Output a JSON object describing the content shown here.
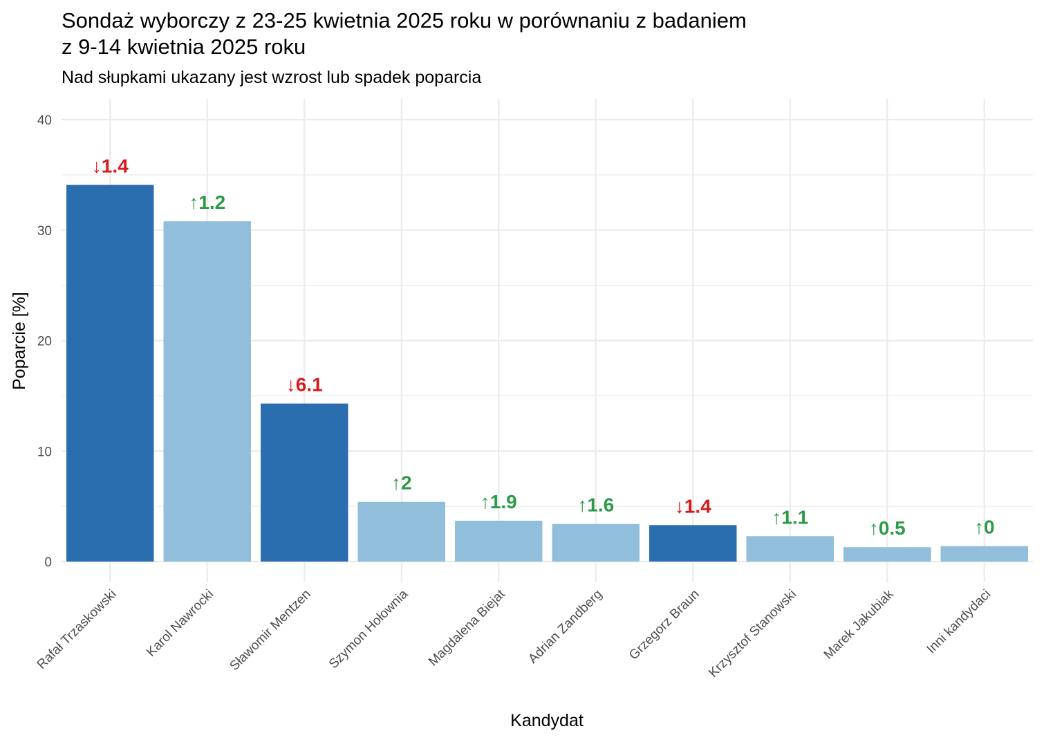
{
  "chart_data": {
    "type": "bar",
    "title_lines": [
      "Sondaż wyborczy z 23-25 kwietnia 2025 roku w porównaniu z badaniem",
      "z 9-14 kwietnia 2025 roku"
    ],
    "subtitle": "Nad słupkami ukazany jest wzrost lub spadek poparcia",
    "xlabel": "Kandydat",
    "ylabel": "Poparcie [%]",
    "ylim": [
      0,
      40
    ],
    "yticks": [
      0,
      10,
      20,
      30,
      40
    ],
    "grid": true,
    "legend": "none",
    "categories": [
      "Rafał Trzaskowski",
      "Karol Nawrocki",
      "Sławomir Mentzen",
      "Szymon Hołownia",
      "Magdalena Biejat",
      "Adrian Zandberg",
      "Grzegorz Braun",
      "Krzysztof Stanowski",
      "Marek Jakubiak",
      "Inni kandydaci"
    ],
    "values": [
      34.1,
      30.8,
      14.3,
      5.4,
      3.7,
      3.4,
      3.3,
      2.3,
      1.3,
      1.4
    ],
    "change_labels": [
      "↓1.4",
      "↑1.2",
      "↓6.1",
      "↑2",
      "↑1.9",
      "↑1.6",
      "↓1.4",
      "↑1.1",
      "↑0.5",
      "↑0"
    ],
    "change_direction": [
      "down",
      "up",
      "down",
      "up",
      "up",
      "up",
      "down",
      "up",
      "up",
      "up"
    ],
    "colors": {
      "bar_down": "#2a6eb0",
      "bar_up": "#91bedb",
      "label_down": "#d7191c",
      "label_up": "#2c9a47",
      "grid": "#ebebeb"
    }
  }
}
